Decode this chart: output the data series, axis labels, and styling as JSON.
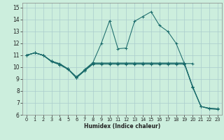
{
  "xlabel": "Humidex (Indice chaleur)",
  "bg_color": "#cceedd",
  "grid_color": "#aacccc",
  "line_color": "#1a6b6b",
  "xlim": [
    -0.5,
    23.5
  ],
  "ylim": [
    6,
    15.4
  ],
  "xticks": [
    0,
    1,
    2,
    3,
    4,
    5,
    6,
    7,
    8,
    9,
    10,
    11,
    12,
    13,
    14,
    15,
    16,
    17,
    18,
    19,
    20,
    21,
    22,
    23
  ],
  "yticks": [
    6,
    7,
    8,
    9,
    10,
    11,
    12,
    13,
    14,
    15
  ],
  "lines": [
    {
      "x": [
        0,
        1,
        2,
        3,
        4,
        5,
        6,
        7,
        8,
        9,
        10,
        11,
        12,
        13,
        14,
        15,
        16,
        17,
        18,
        19,
        20
      ],
      "y": [
        11.0,
        11.2,
        11.0,
        10.5,
        10.2,
        9.85,
        9.1,
        9.8,
        10.4,
        12.0,
        13.9,
        11.55,
        11.6,
        13.85,
        14.25,
        14.65,
        13.5,
        13.0,
        12.0,
        10.3,
        10.3
      ]
    },
    {
      "x": [
        0,
        1,
        2,
        3,
        4,
        5,
        6,
        7,
        8,
        9,
        10,
        11,
        12,
        13,
        14,
        15,
        16,
        17,
        18,
        19,
        20,
        21,
        22,
        23
      ],
      "y": [
        11.0,
        11.2,
        11.0,
        10.5,
        10.3,
        9.85,
        9.2,
        9.75,
        10.35,
        10.35,
        10.35,
        10.35,
        10.35,
        10.35,
        10.35,
        10.35,
        10.35,
        10.35,
        10.35,
        10.35,
        8.35,
        6.7,
        6.55,
        6.5
      ]
    },
    {
      "x": [
        0,
        1,
        2,
        3,
        4,
        5,
        6,
        7,
        8,
        9,
        10,
        11,
        12,
        13,
        14,
        15,
        16,
        17,
        18,
        19,
        20,
        21,
        22,
        23
      ],
      "y": [
        11.0,
        11.2,
        11.0,
        10.5,
        10.25,
        9.85,
        9.1,
        9.7,
        10.3,
        10.3,
        10.3,
        10.3,
        10.3,
        10.3,
        10.3,
        10.3,
        10.3,
        10.3,
        10.3,
        10.3,
        8.35,
        6.7,
        6.55,
        6.5
      ]
    },
    {
      "x": [
        0,
        1,
        2,
        3,
        4,
        5,
        6,
        7,
        8,
        9,
        10,
        11,
        12,
        13,
        14,
        15,
        16,
        17,
        18,
        19,
        20,
        21,
        22,
        23
      ],
      "y": [
        11.0,
        11.2,
        11.0,
        10.45,
        10.2,
        9.8,
        9.1,
        9.7,
        10.25,
        10.25,
        10.25,
        10.25,
        10.25,
        10.25,
        10.25,
        10.25,
        10.25,
        10.25,
        10.25,
        10.25,
        8.3,
        6.7,
        6.5,
        6.45
      ]
    }
  ]
}
